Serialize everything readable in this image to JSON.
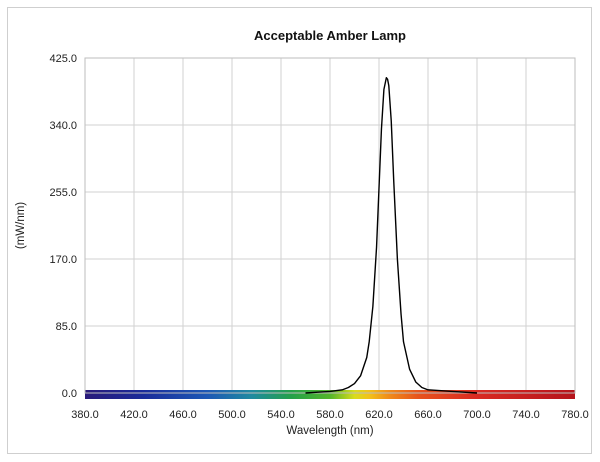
{
  "chart_data": {
    "type": "line",
    "title": "Acceptable Amber Lamp",
    "xlabel": "Wavelength (nm)",
    "ylabel": "(mW/nm)",
    "xlim": [
      380,
      780
    ],
    "ylim": [
      0,
      425
    ],
    "x_ticks": [
      "380.0",
      "420.0",
      "460.0",
      "500.0",
      "540.0",
      "580.0",
      "620.0",
      "660.0",
      "700.0",
      "740.0",
      "780.0"
    ],
    "y_ticks": [
      "0.0",
      "85.0",
      "170.0",
      "255.0",
      "340.0",
      "425.0"
    ],
    "grid": true,
    "legend": "none",
    "spectrum_bar": true,
    "series": [
      {
        "color": "#000000",
        "x": [
          560,
          570,
          580,
          590,
          595,
          600,
          605,
          610,
          612,
          615,
          618,
          620,
          622,
          624,
          626,
          627,
          628,
          630,
          632,
          635,
          638,
          640,
          645,
          650,
          655,
          660,
          680,
          700
        ],
        "y": [
          0,
          1,
          2,
          4,
          7,
          12,
          22,
          45,
          65,
          110,
          185,
          260,
          335,
          385,
          400,
          398,
          390,
          345,
          270,
          170,
          100,
          65,
          30,
          14,
          7,
          4,
          2,
          0
        ]
      }
    ]
  }
}
